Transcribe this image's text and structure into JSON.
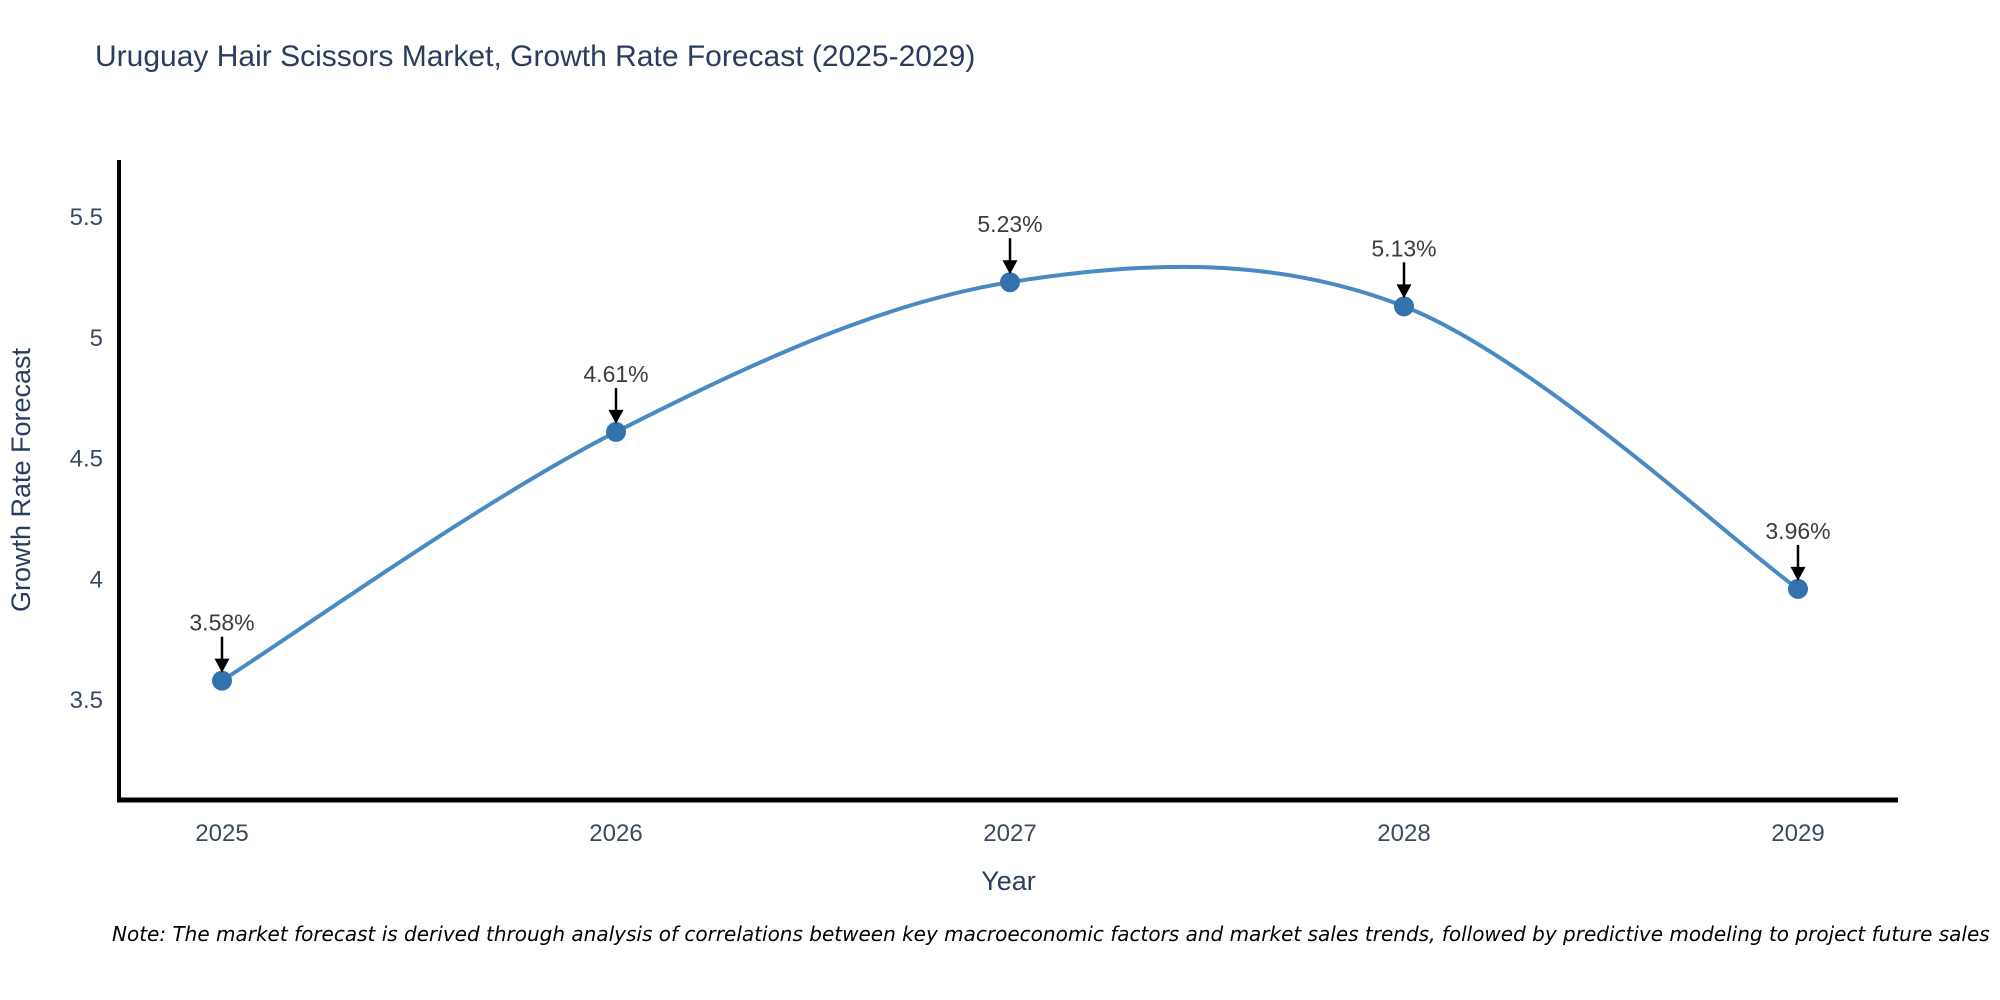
{
  "title": "Uruguay Hair Scissors Market, Growth Rate Forecast (2025-2029)",
  "note": "Note: The market forecast is derived through analysis of correlations between key macroeconomic factors and market sales trends, followed by predictive modeling to project future sales",
  "chart_data": {
    "type": "line",
    "line_shape": "spline",
    "title": "Uruguay Hair Scissors Market, Growth Rate Forecast (2025-2029)",
    "xlabel": "Year",
    "ylabel": "Growth Rate Forecast",
    "x": [
      2025,
      2026,
      2027,
      2028,
      2029
    ],
    "values": [
      3.58,
      4.61,
      5.23,
      5.13,
      3.96
    ],
    "point_labels": [
      "3.58%",
      "4.61%",
      "5.23%",
      "5.13%",
      "3.96%"
    ],
    "xtick_labels": [
      "2025",
      "2026",
      "2027",
      "2028",
      "2029"
    ],
    "yticks": [
      3.5,
      4,
      4.5,
      5,
      5.5
    ],
    "ytick_labels": [
      "3.5",
      "4",
      "4.5",
      "5",
      "5.5"
    ],
    "xlim": [
      2024.74,
      2029.25
    ],
    "ylim": [
      3.09,
      5.74
    ],
    "grid": false,
    "legend": "none",
    "colors": {
      "line": "#4a8ac4",
      "marker": "#3372ad",
      "arrow": "#000000",
      "axis_line": "#000000",
      "title": "#2b3d5f",
      "axis_title": "#2b3d5f",
      "tick": "#3b4a5f",
      "annotation": "#3d3d3d",
      "background": "#ffffff"
    }
  }
}
